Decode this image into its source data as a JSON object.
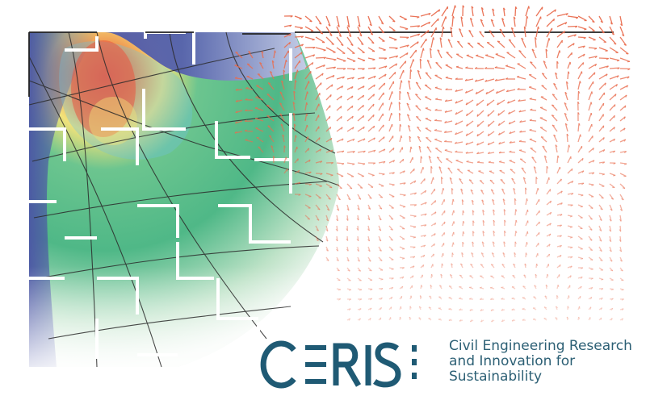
{
  "colors": {
    "heat_dark_blue": "#4b55a5",
    "heat_light_blue": "#6fc4dc",
    "heat_green": "#4fb887",
    "heat_yellow": "#f2e27a",
    "heat_red": "#e9553f",
    "arrow_salmon": "#e96d4f",
    "grid_line": "#2b2b2b",
    "logo_teal": "#1f5a74",
    "tagline_teal": "#2d6075"
  },
  "logo": {
    "wordmark": "CERIS",
    "tagline_lines": [
      "Civil Engineering Research",
      "and Innovation for",
      "Sustainability"
    ]
  }
}
